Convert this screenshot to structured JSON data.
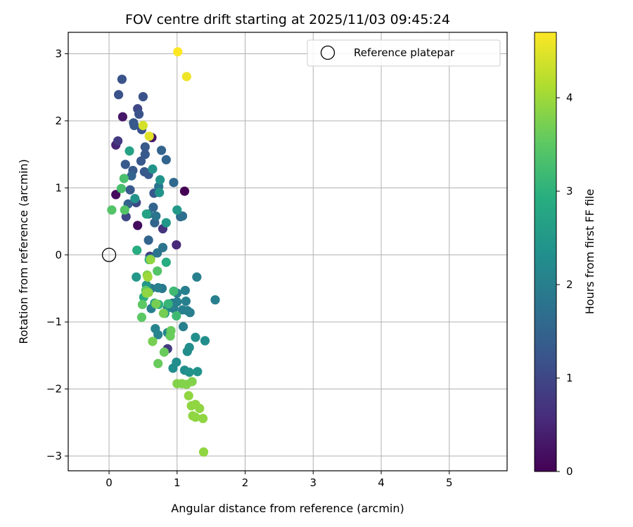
{
  "chart_data": {
    "type": "scatter",
    "title": "FOV centre drift starting at 2025/11/03 09:45:24",
    "xlabel": "Angular distance from reference (arcmin)",
    "ylabel": "Rotation from reference (arcmin)",
    "xlim": [
      -0.6,
      5.85
    ],
    "ylim": [
      -3.22,
      3.32
    ],
    "xticks": [
      0,
      1,
      2,
      3,
      4,
      5
    ],
    "yticks": [
      -3,
      -2,
      -1,
      0,
      1,
      2,
      3
    ],
    "grid": true,
    "colormap": "viridis",
    "colorbar": {
      "label": "Hours from first FF file",
      "range": [
        0,
        4.7
      ],
      "ticks": [
        0,
        1,
        2,
        3,
        4
      ]
    },
    "legend": {
      "location": "top-right",
      "entries": [
        "Reference platepar"
      ]
    },
    "reference_point": {
      "x": 0,
      "y": 0
    },
    "points": [
      {
        "x": 1.11,
        "y": 0.95,
        "c": 0.0
      },
      {
        "x": 0.42,
        "y": 0.44,
        "c": 0.15
      },
      {
        "x": 0.1,
        "y": 0.9,
        "c": 0.15
      },
      {
        "x": 0.63,
        "y": 1.75,
        "c": 0.25
      },
      {
        "x": 0.2,
        "y": 2.06,
        "c": 0.3
      },
      {
        "x": 0.1,
        "y": 1.64,
        "c": 0.5
      },
      {
        "x": 0.99,
        "y": 0.15,
        "c": 0.55
      },
      {
        "x": 0.79,
        "y": 0.39,
        "c": 0.7
      },
      {
        "x": 0.13,
        "y": 1.7,
        "c": 0.8
      },
      {
        "x": 0.6,
        "y": -0.02,
        "c": 0.8
      },
      {
        "x": 0.86,
        "y": -1.4,
        "c": 0.8
      },
      {
        "x": 0.42,
        "y": 2.18,
        "c": 1.0
      },
      {
        "x": 0.25,
        "y": 0.57,
        "c": 1.0
      },
      {
        "x": 0.4,
        "y": 0.78,
        "c": 1.0
      },
      {
        "x": 0.19,
        "y": 2.62,
        "c": 1.2
      },
      {
        "x": 0.14,
        "y": 2.39,
        "c": 1.2
      },
      {
        "x": 0.5,
        "y": 2.36,
        "c": 1.2
      },
      {
        "x": 0.44,
        "y": 2.1,
        "c": 1.2
      },
      {
        "x": 0.36,
        "y": 1.97,
        "c": 1.3
      },
      {
        "x": 0.37,
        "y": 1.93,
        "c": 1.3
      },
      {
        "x": 0.48,
        "y": 1.87,
        "c": 1.2
      },
      {
        "x": 0.53,
        "y": 1.61,
        "c": 1.3
      },
      {
        "x": 0.53,
        "y": 1.5,
        "c": 1.3
      },
      {
        "x": 0.24,
        "y": 1.35,
        "c": 1.3
      },
      {
        "x": 0.47,
        "y": 1.4,
        "c": 1.3
      },
      {
        "x": 0.35,
        "y": 1.26,
        "c": 1.3
      },
      {
        "x": 0.52,
        "y": 1.24,
        "c": 1.3
      },
      {
        "x": 0.58,
        "y": 1.2,
        "c": 1.3
      },
      {
        "x": 0.31,
        "y": 0.97,
        "c": 1.3
      },
      {
        "x": 0.66,
        "y": 0.92,
        "c": 1.3
      },
      {
        "x": 0.77,
        "y": 1.56,
        "c": 1.5
      },
      {
        "x": 0.84,
        "y": 1.42,
        "c": 1.5
      },
      {
        "x": 0.33,
        "y": 1.18,
        "c": 1.5
      },
      {
        "x": 0.28,
        "y": 0.76,
        "c": 1.5
      },
      {
        "x": 0.65,
        "y": 0.71,
        "c": 1.5
      },
      {
        "x": 0.58,
        "y": 0.22,
        "c": 1.5
      },
      {
        "x": 0.67,
        "y": 0.48,
        "c": 1.5
      },
      {
        "x": 0.95,
        "y": 1.08,
        "c": 1.6
      },
      {
        "x": 1.05,
        "y": 0.57,
        "c": 1.6
      },
      {
        "x": 1.08,
        "y": 0.58,
        "c": 1.7
      },
      {
        "x": 0.73,
        "y": 1.02,
        "c": 1.8
      },
      {
        "x": 0.58,
        "y": 0.61,
        "c": 1.8
      },
      {
        "x": 0.69,
        "y": 0.58,
        "c": 1.8
      },
      {
        "x": 0.79,
        "y": 0.11,
        "c": 1.8
      },
      {
        "x": 0.71,
        "y": 0.03,
        "c": 1.8
      },
      {
        "x": 0.61,
        "y": -0.05,
        "c": 1.8
      },
      {
        "x": 0.62,
        "y": -0.5,
        "c": 1.9
      },
      {
        "x": 0.78,
        "y": -0.5,
        "c": 1.9
      },
      {
        "x": 0.93,
        "y": -0.72,
        "c": 1.9
      },
      {
        "x": 1.0,
        "y": -0.57,
        "c": 2.0
      },
      {
        "x": 1.0,
        "y": -0.7,
        "c": 2.0
      },
      {
        "x": 0.95,
        "y": -0.8,
        "c": 2.0
      },
      {
        "x": 1.12,
        "y": -0.53,
        "c": 2.0
      },
      {
        "x": 1.13,
        "y": -0.69,
        "c": 2.0
      },
      {
        "x": 1.15,
        "y": -0.83,
        "c": 2.0
      },
      {
        "x": 1.19,
        "y": -0.86,
        "c": 2.0
      },
      {
        "x": 1.08,
        "y": -0.82,
        "c": 2.0
      },
      {
        "x": 1.09,
        "y": -1.07,
        "c": 2.0
      },
      {
        "x": 1.56,
        "y": -0.67,
        "c": 2.0
      },
      {
        "x": 1.29,
        "y": -0.33,
        "c": 2.0
      },
      {
        "x": 0.62,
        "y": -0.8,
        "c": 2.0
      },
      {
        "x": 0.72,
        "y": -0.49,
        "c": 2.0
      },
      {
        "x": 0.86,
        "y": -0.79,
        "c": 2.0
      },
      {
        "x": 0.68,
        "y": -1.1,
        "c": 2.1
      },
      {
        "x": 0.72,
        "y": -1.19,
        "c": 2.1
      },
      {
        "x": 0.86,
        "y": -1.16,
        "c": 2.2
      },
      {
        "x": 1.27,
        "y": -1.23,
        "c": 2.3
      },
      {
        "x": 1.41,
        "y": -1.28,
        "c": 2.3
      },
      {
        "x": 1.18,
        "y": -1.38,
        "c": 2.3
      },
      {
        "x": 1.15,
        "y": -1.44,
        "c": 2.3
      },
      {
        "x": 0.99,
        "y": -1.6,
        "c": 2.3
      },
      {
        "x": 0.94,
        "y": -1.69,
        "c": 2.3
      },
      {
        "x": 1.11,
        "y": -1.72,
        "c": 2.3
      },
      {
        "x": 1.3,
        "y": -1.74,
        "c": 2.4
      },
      {
        "x": 1.18,
        "y": -1.75,
        "c": 2.4
      },
      {
        "x": 0.75,
        "y": 1.12,
        "c": 2.4
      },
      {
        "x": 0.74,
        "y": 0.93,
        "c": 2.4
      },
      {
        "x": 0.64,
        "y": 1.28,
        "c": 2.4
      },
      {
        "x": 0.38,
        "y": 0.84,
        "c": 2.4
      },
      {
        "x": 0.84,
        "y": 0.48,
        "c": 2.5
      },
      {
        "x": 1.0,
        "y": 0.67,
        "c": 2.5
      },
      {
        "x": 0.4,
        "y": -0.33,
        "c": 2.5
      },
      {
        "x": 0.55,
        "y": -0.45,
        "c": 2.5
      },
      {
        "x": 0.67,
        "y": -0.72,
        "c": 2.6
      },
      {
        "x": 0.82,
        "y": -0.87,
        "c": 2.6
      },
      {
        "x": 0.3,
        "y": 1.55,
        "c": 2.7
      },
      {
        "x": 0.55,
        "y": 0.61,
        "c": 2.7
      },
      {
        "x": 0.59,
        "y": -0.07,
        "c": 2.9
      },
      {
        "x": 0.84,
        "y": -0.11,
        "c": 2.9
      },
      {
        "x": 0.41,
        "y": 0.07,
        "c": 2.9
      },
      {
        "x": 0.51,
        "y": -0.63,
        "c": 2.9
      },
      {
        "x": 0.73,
        "y": -0.74,
        "c": 3.0
      },
      {
        "x": 0.87,
        "y": -0.73,
        "c": 3.1
      },
      {
        "x": 0.99,
        "y": -0.91,
        "c": 3.2
      },
      {
        "x": 0.95,
        "y": -0.54,
        "c": 3.2
      },
      {
        "x": 0.22,
        "y": 1.14,
        "c": 3.3
      },
      {
        "x": 0.18,
        "y": 0.99,
        "c": 3.3
      },
      {
        "x": 0.04,
        "y": 0.67,
        "c": 3.4
      },
      {
        "x": 0.23,
        "y": 0.67,
        "c": 3.4
      },
      {
        "x": 0.71,
        "y": -0.24,
        "c": 3.4
      },
      {
        "x": 0.54,
        "y": -0.53,
        "c": 3.5
      },
      {
        "x": 0.49,
        "y": -0.74,
        "c": 3.5
      },
      {
        "x": 0.48,
        "y": -0.93,
        "c": 3.5
      },
      {
        "x": 0.72,
        "y": -1.62,
        "c": 3.6
      },
      {
        "x": 0.81,
        "y": -1.45,
        "c": 3.6
      },
      {
        "x": 0.91,
        "y": -1.13,
        "c": 3.6
      },
      {
        "x": 0.9,
        "y": -1.21,
        "c": 3.6
      },
      {
        "x": 0.8,
        "y": -0.87,
        "c": 3.7
      },
      {
        "x": 0.64,
        "y": -1.29,
        "c": 3.7
      },
      {
        "x": 0.69,
        "y": -0.73,
        "c": 3.7
      },
      {
        "x": 0.56,
        "y": -0.3,
        "c": 3.8
      },
      {
        "x": 0.58,
        "y": -0.56,
        "c": 3.8
      },
      {
        "x": 1.0,
        "y": -1.92,
        "c": 3.8
      },
      {
        "x": 1.07,
        "y": -1.92,
        "c": 3.8
      },
      {
        "x": 1.14,
        "y": -1.93,
        "c": 3.8
      },
      {
        "x": 1.22,
        "y": -1.89,
        "c": 3.8
      },
      {
        "x": 1.17,
        "y": -2.1,
        "c": 3.9
      },
      {
        "x": 1.21,
        "y": -2.25,
        "c": 3.9
      },
      {
        "x": 1.23,
        "y": -2.4,
        "c": 3.9
      },
      {
        "x": 1.27,
        "y": -2.42,
        "c": 3.9
      },
      {
        "x": 1.27,
        "y": -2.23,
        "c": 3.9
      },
      {
        "x": 1.33,
        "y": -2.29,
        "c": 3.9
      },
      {
        "x": 1.38,
        "y": -2.44,
        "c": 3.9
      },
      {
        "x": 1.39,
        "y": -2.94,
        "c": 3.9
      },
      {
        "x": 0.55,
        "y": -0.57,
        "c": 3.9
      },
      {
        "x": 0.61,
        "y": -0.07,
        "c": 3.9
      },
      {
        "x": 0.57,
        "y": -0.33,
        "c": 4.0
      },
      {
        "x": 0.5,
        "y": 1.93,
        "c": 4.4
      },
      {
        "x": 0.59,
        "y": 1.77,
        "c": 4.5
      },
      {
        "x": 1.14,
        "y": 2.66,
        "c": 4.6
      },
      {
        "x": 1.01,
        "y": 3.03,
        "c": 4.7
      }
    ]
  }
}
